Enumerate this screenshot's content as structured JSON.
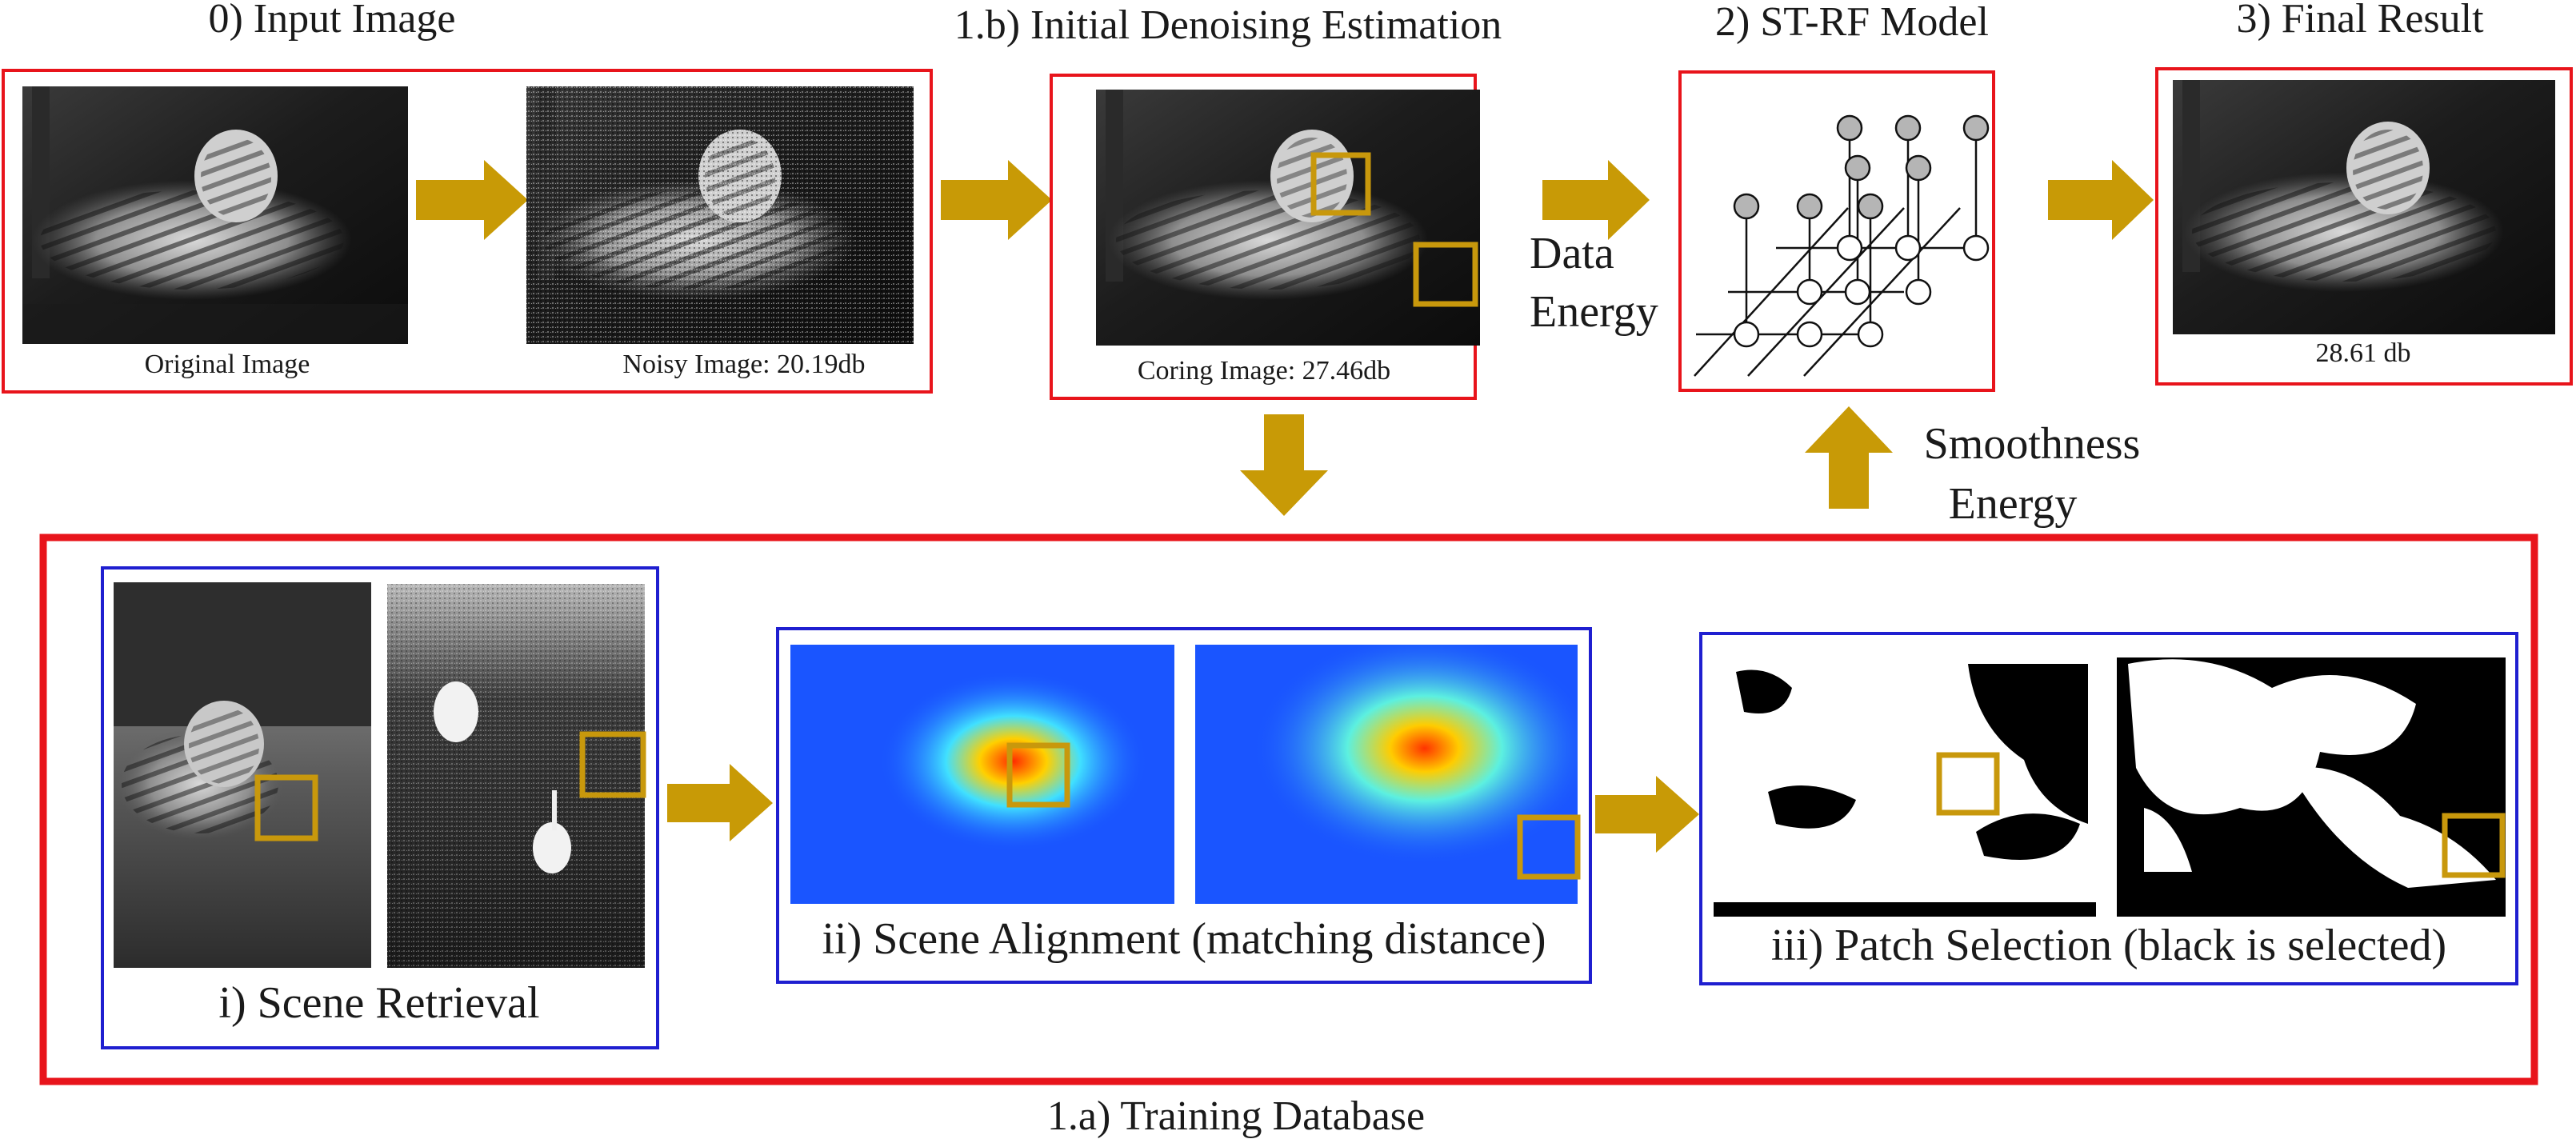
{
  "steps": {
    "input": {
      "title": "0) Input Image",
      "original_caption": "Original Image",
      "noisy_caption": "Noisy Image: 20.19db"
    },
    "initial": {
      "title": "1.b) Initial Denoising Estimation",
      "coring_caption": "Coring Image: 27.46db"
    },
    "strf": {
      "title": "2) ST-RF Model"
    },
    "final": {
      "title": "3) Final Result",
      "caption": "28.61 db"
    }
  },
  "energies": {
    "data_line1": "Data",
    "data_line2": "Energy",
    "smooth_line1": "Smoothness",
    "smooth_line2": "Energy"
  },
  "training": {
    "label": "1.a) Training Database",
    "retrieval": "i) Scene Retrieval",
    "alignment": "ii) Scene Alignment (matching distance)",
    "selection": "iii) Patch Selection (black is selected)"
  },
  "colors": {
    "red_frame": "#e8141b",
    "blue_frame": "#1f1fd0",
    "arrow_gold": "#c89a06",
    "patch_gold": "#c8980c",
    "node_gray": "#b5b5b5"
  }
}
